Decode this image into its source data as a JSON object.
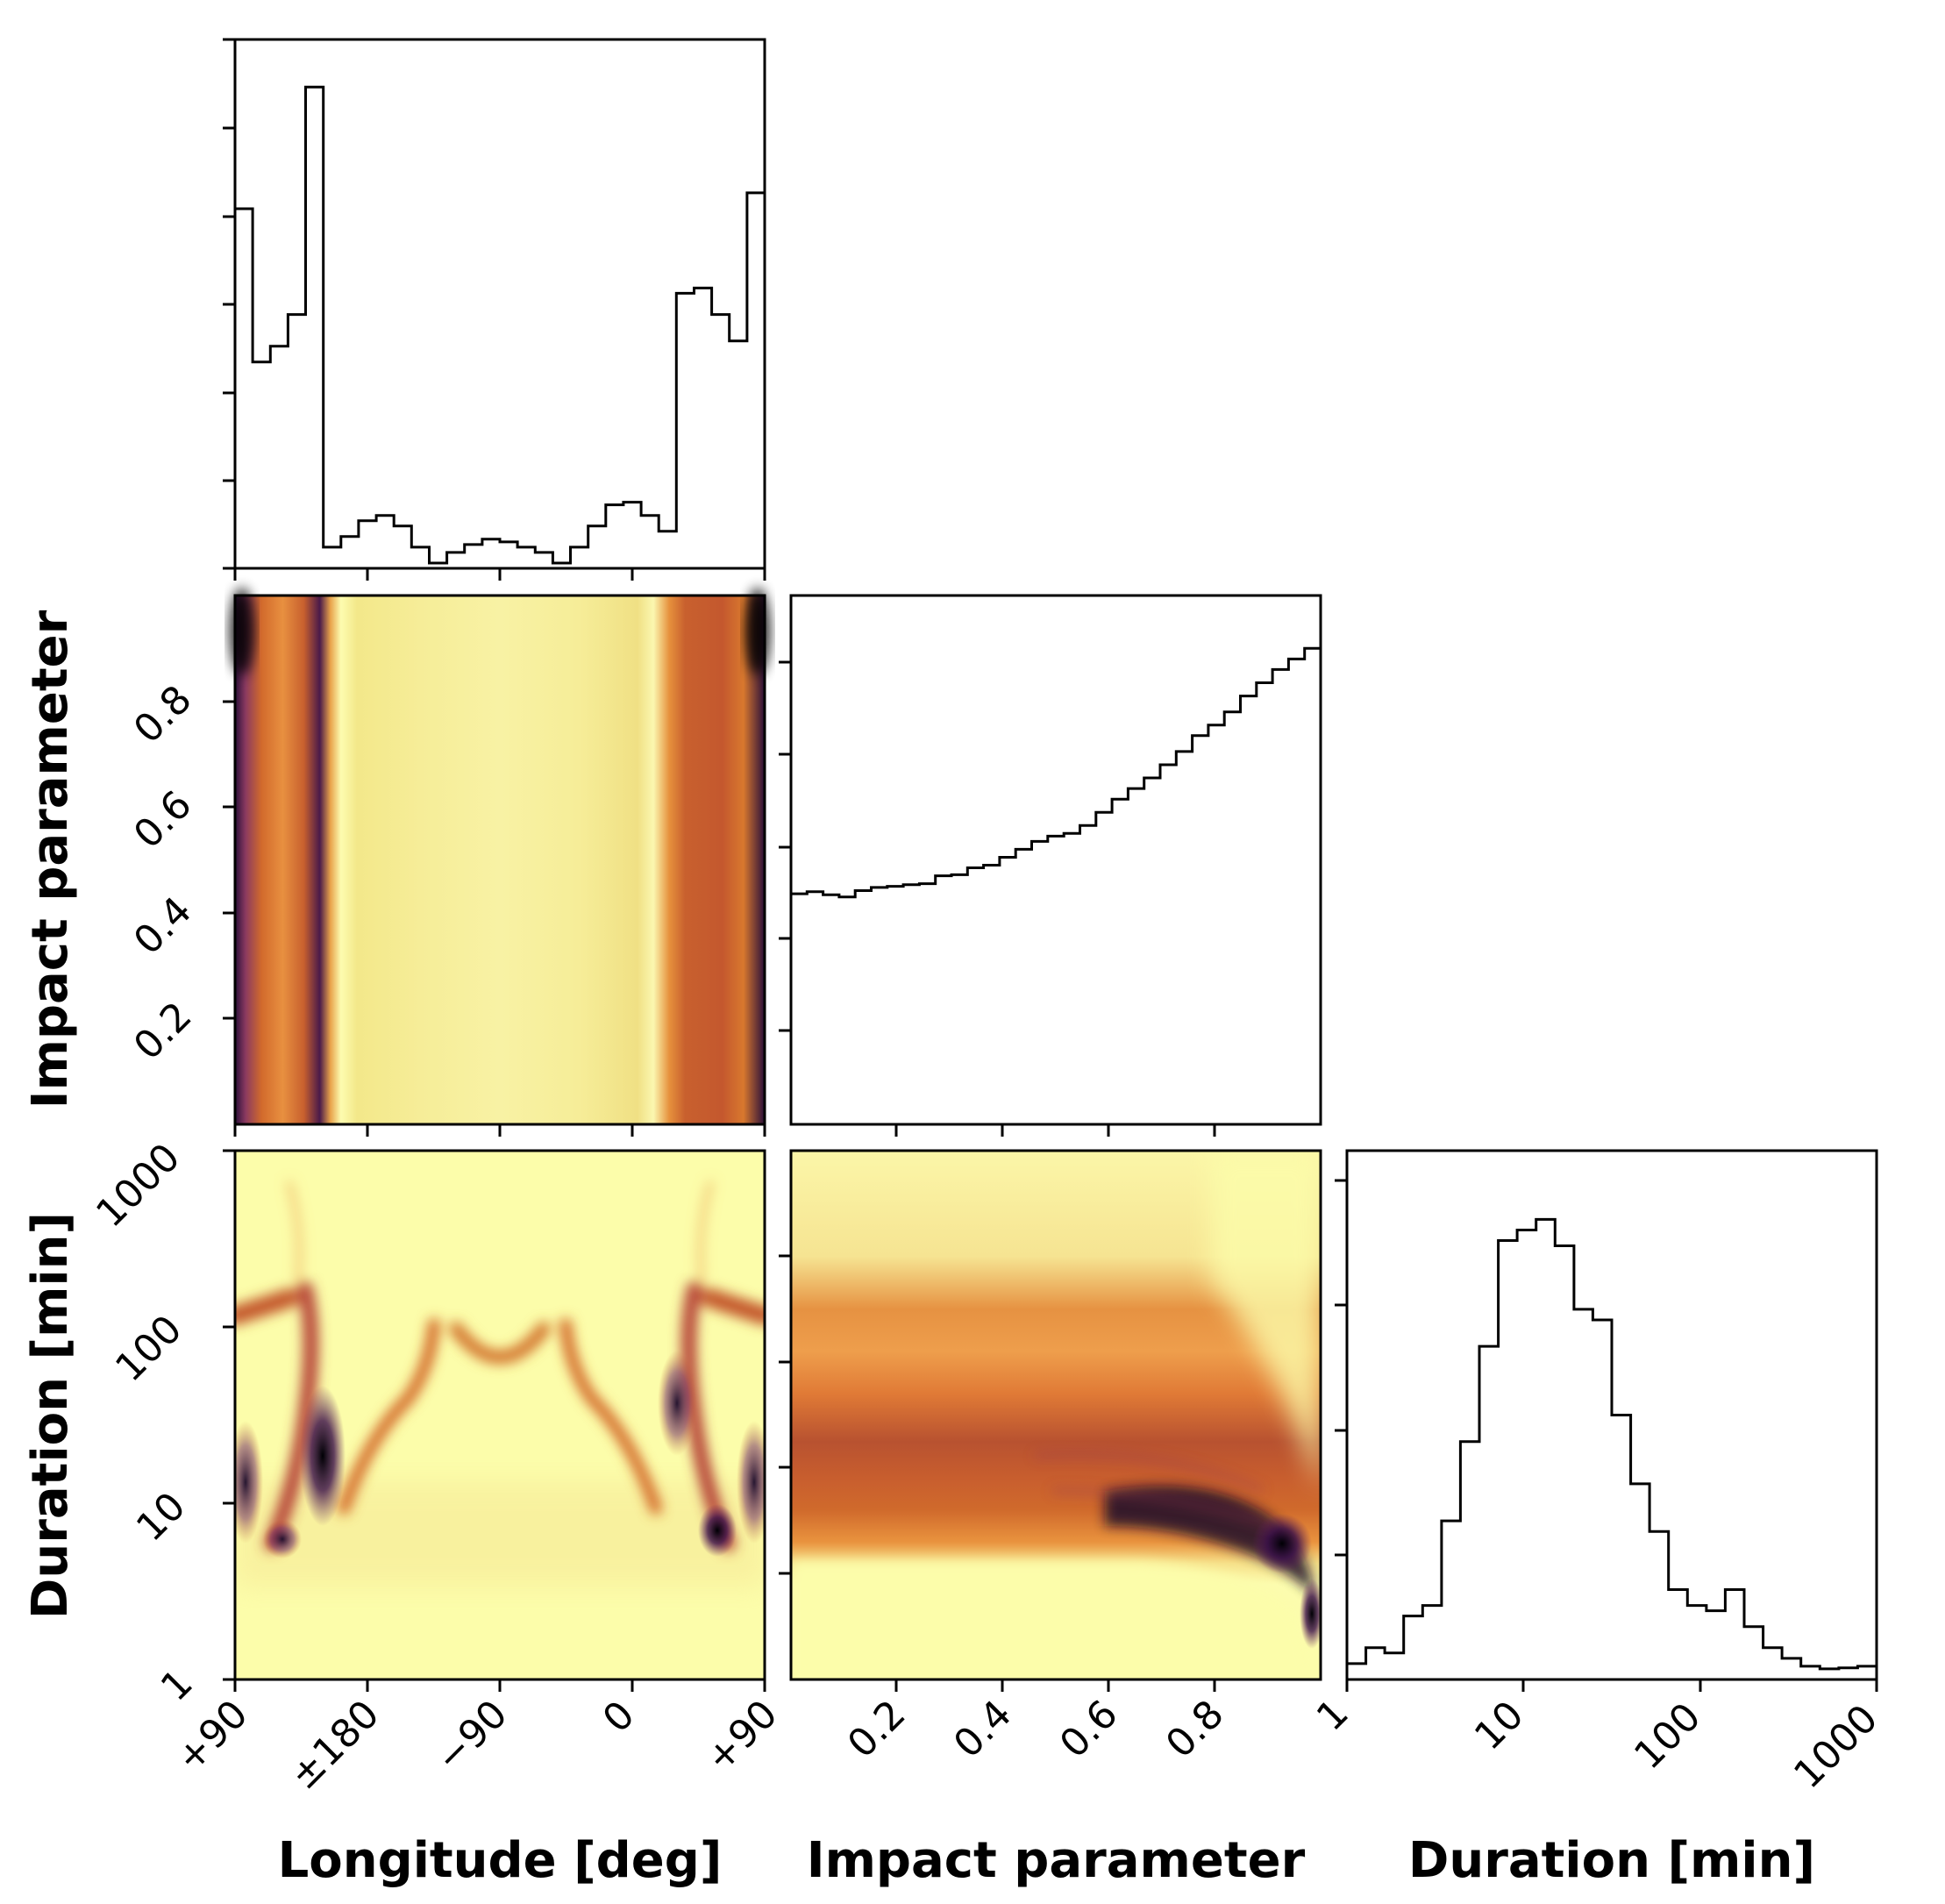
{
  "chart_data": [
    {
      "type": "histogram",
      "panel": "longitude-hist",
      "x_range": [
        90,
        -270
      ],
      "x_ticks": [
        90,
        180,
        270,
        360,
        450
      ],
      "step_values": [
        0.68,
        0.39,
        0.42,
        0.48,
        0.91,
        0.04,
        0.06,
        0.09,
        0.1,
        0.08,
        0.04,
        0.01,
        0.03,
        0.045,
        0.055,
        0.05,
        0.04,
        0.03,
        0.01,
        0.04,
        0.08,
        0.12,
        0.125,
        0.1,
        0.07,
        0.52,
        0.53,
        0.48,
        0.43,
        0.71
      ]
    },
    {
      "type": "heatmap",
      "panel": "impact-vs-longitude",
      "ylabel": "Impact parameter",
      "ylim": [
        0,
        1
      ],
      "y_ticks": [
        "0.2",
        "0.4",
        "0.6",
        "0.8"
      ]
    },
    {
      "type": "histogram",
      "panel": "impact-hist",
      "x_range": [
        0,
        1
      ],
      "step_values": [
        0.436,
        0.44,
        0.434,
        0.43,
        0.442,
        0.448,
        0.45,
        0.453,
        0.455,
        0.47,
        0.472,
        0.485,
        0.49,
        0.505,
        0.52,
        0.535,
        0.545,
        0.55,
        0.565,
        0.59,
        0.615,
        0.635,
        0.655,
        0.68,
        0.705,
        0.735,
        0.755,
        0.78,
        0.81,
        0.835,
        0.86,
        0.88,
        0.9
      ]
    },
    {
      "type": "heatmap",
      "panel": "duration-vs-longitude",
      "ylabel": "Duration [min]",
      "y_scale": "log",
      "ylim": [
        1,
        1000
      ],
      "y_ticks": [
        "1",
        "10",
        "100",
        "1000"
      ]
    },
    {
      "type": "heatmap",
      "panel": "duration-vs-impact",
      "y_scale": "log",
      "ylim": [
        1,
        1000
      ]
    },
    {
      "type": "histogram",
      "panel": "duration-hist",
      "x_scale": "log",
      "x_range": [
        1,
        1000
      ],
      "step_values": [
        0.03,
        0.06,
        0.05,
        0.12,
        0.14,
        0.3,
        0.45,
        0.63,
        0.83,
        0.85,
        0.87,
        0.82,
        0.7,
        0.68,
        0.5,
        0.37,
        0.28,
        0.17,
        0.14,
        0.13,
        0.17,
        0.1,
        0.06,
        0.04,
        0.025,
        0.02,
        0.022,
        0.025
      ]
    }
  ],
  "labels": {
    "col0_xlabel": "Longitude [deg]",
    "col1_xlabel": "Impact parameter",
    "col2_xlabel": "Duration [min]",
    "row1_ylabel": "Impact parameter",
    "row2_ylabel": "Duration [min]"
  },
  "tick_labels": {
    "longitude": [
      "+90",
      "±180",
      "−90",
      "0",
      "+90"
    ],
    "impact": [
      "0.2",
      "0.4",
      "0.6",
      "0.8"
    ],
    "duration": [
      "1",
      "10",
      "100",
      "1000"
    ]
  },
  "colors": {
    "colormap_low": "#fcfdaa",
    "colormap_mid": "#e07a2c",
    "colormap_mid2": "#8a2a6a",
    "colormap_high": "#000004",
    "line": "#000000"
  }
}
